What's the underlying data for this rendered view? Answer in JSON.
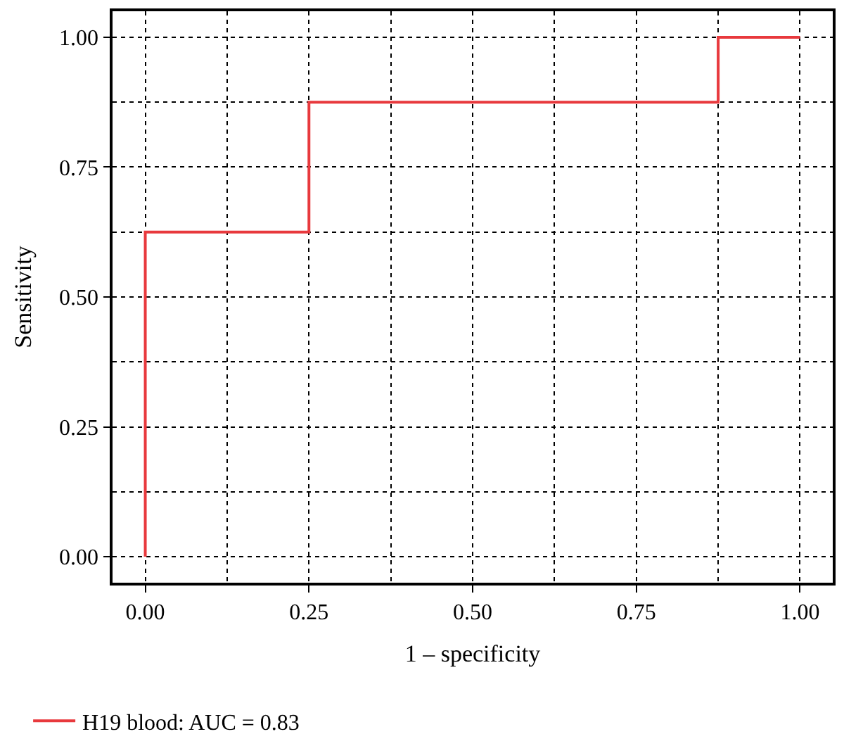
{
  "chart_data": {
    "type": "step",
    "xlabel": "1 – specificity",
    "ylabel": "Sensitivity",
    "x": [
      0,
      0,
      0.25,
      0.875,
      1
    ],
    "series": [
      {
        "name": "H19 blood: AUC = 0.83",
        "color": "#e8393d",
        "values": [
          0,
          0.625,
          0.875,
          1,
          1
        ]
      }
    ],
    "xlim": [
      -0.05,
      1.05
    ],
    "ylim": [
      -0.05,
      1.05
    ],
    "xticks": [
      {
        "value": 0,
        "label": "0.00"
      },
      {
        "value": 0.125,
        "label": null
      },
      {
        "value": 0.25,
        "label": "0.25"
      },
      {
        "value": 0.375,
        "label": null
      },
      {
        "value": 0.5,
        "label": "0.50"
      },
      {
        "value": 0.625,
        "label": null
      },
      {
        "value": 0.75,
        "label": "0.75"
      },
      {
        "value": 0.875,
        "label": null
      },
      {
        "value": 1,
        "label": "1.00"
      }
    ],
    "yticks": [
      {
        "value": 0,
        "label": "0.00"
      },
      {
        "value": 0.125,
        "label": null
      },
      {
        "value": 0.25,
        "label": "0.25"
      },
      {
        "value": 0.375,
        "label": null
      },
      {
        "value": 0.5,
        "label": "0.50"
      },
      {
        "value": 0.625,
        "label": null
      },
      {
        "value": 0.75,
        "label": "0.75"
      },
      {
        "value": 0.875,
        "label": null
      },
      {
        "value": 1,
        "label": "1.00"
      }
    ],
    "grid": true,
    "legend": "bottom left",
    "line_style": "solid",
    "marker": "none"
  }
}
